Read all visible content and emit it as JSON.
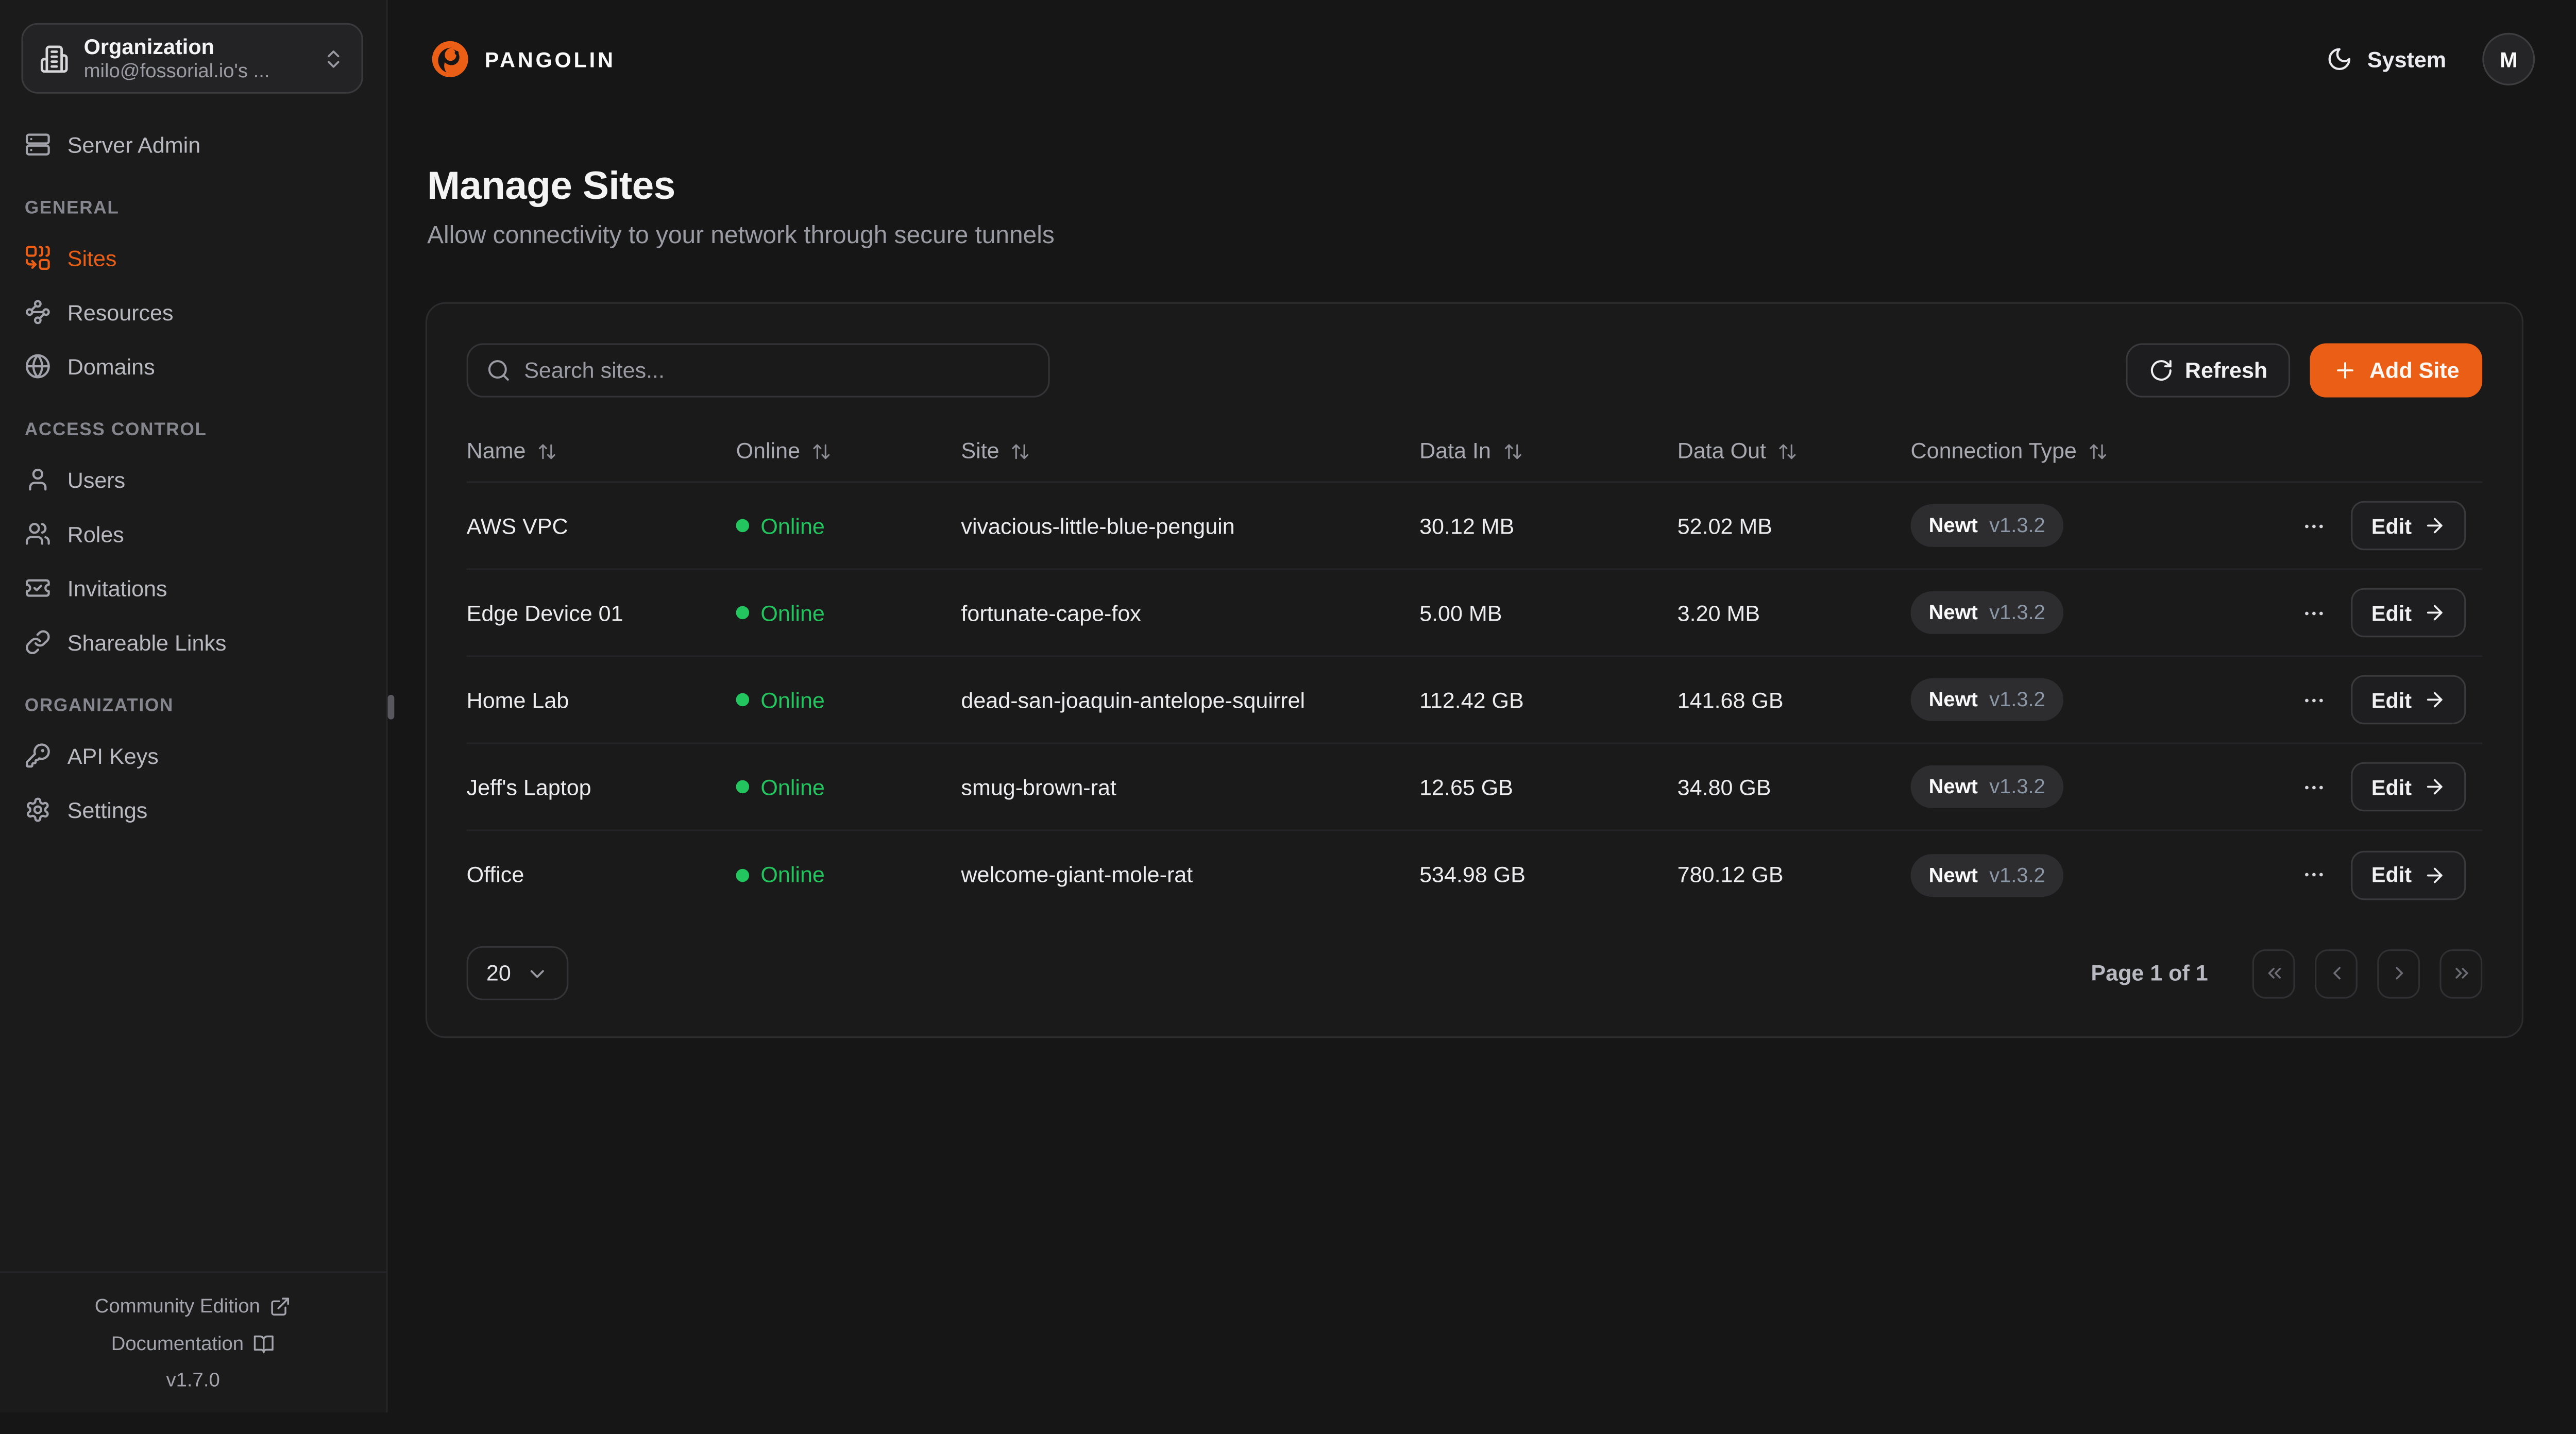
{
  "colors": {
    "accent": "#eb5e15",
    "online": "#22c55e"
  },
  "sidebar": {
    "org": {
      "label": "Organization",
      "value": "milo@fossorial.io's ...",
      "icon": "building-icon"
    },
    "server_admin": {
      "label": "Server Admin",
      "icon": "server-icon"
    },
    "sections": [
      {
        "label": "GENERAL",
        "items": [
          {
            "label": "Sites",
            "icon": "sites-icon",
            "active": true
          },
          {
            "label": "Resources",
            "icon": "resources-icon",
            "active": false
          },
          {
            "label": "Domains",
            "icon": "globe-icon",
            "active": false
          }
        ]
      },
      {
        "label": "ACCESS CONTROL",
        "items": [
          {
            "label": "Users",
            "icon": "user-icon",
            "active": false
          },
          {
            "label": "Roles",
            "icon": "users-icon",
            "active": false
          },
          {
            "label": "Invitations",
            "icon": "ticket-check-icon",
            "active": false
          },
          {
            "label": "Shareable Links",
            "icon": "link-icon",
            "active": false
          }
        ]
      },
      {
        "label": "ORGANIZATION",
        "items": [
          {
            "label": "API Keys",
            "icon": "key-icon",
            "active": false
          },
          {
            "label": "Settings",
            "icon": "gear-icon",
            "active": false
          }
        ]
      }
    ],
    "footer": {
      "community_label": "Community Edition",
      "documentation_label": "Documentation",
      "version": "v1.7.0"
    }
  },
  "header": {
    "brand": "PANGOLIN",
    "theme_label": "System",
    "avatar_initial": "M"
  },
  "page": {
    "title": "Manage Sites",
    "subtitle": "Allow connectivity to your network through secure tunnels"
  },
  "toolbar": {
    "search_placeholder": "Search sites...",
    "refresh_label": "Refresh",
    "add_site_label": "Add Site"
  },
  "table": {
    "columns": [
      "Name",
      "Online",
      "Site",
      "Data In",
      "Data Out",
      "Connection Type"
    ],
    "edit_label": "Edit",
    "rows": [
      {
        "name": "AWS VPC",
        "status": "Online",
        "site": "vivacious-little-blue-penguin",
        "data_in": "30.12 MB",
        "data_out": "52.02 MB",
        "connection": {
          "type": "Newt",
          "version": "v1.3.2"
        }
      },
      {
        "name": "Edge Device 01",
        "status": "Online",
        "site": "fortunate-cape-fox",
        "data_in": "5.00 MB",
        "data_out": "3.20 MB",
        "connection": {
          "type": "Newt",
          "version": "v1.3.2"
        }
      },
      {
        "name": "Home Lab",
        "status": "Online",
        "site": "dead-san-joaquin-antelope-squirrel",
        "data_in": "112.42 GB",
        "data_out": "141.68 GB",
        "connection": {
          "type": "Newt",
          "version": "v1.3.2"
        }
      },
      {
        "name": "Jeff's Laptop",
        "status": "Online",
        "site": "smug-brown-rat",
        "data_in": "12.65 GB",
        "data_out": "34.80 GB",
        "connection": {
          "type": "Newt",
          "version": "v1.3.2"
        }
      },
      {
        "name": "Office",
        "status": "Online",
        "site": "welcome-giant-mole-rat",
        "data_in": "534.98 GB",
        "data_out": "780.12 GB",
        "connection": {
          "type": "Newt",
          "version": "v1.3.2"
        }
      }
    ]
  },
  "pagination": {
    "page_size": "20",
    "status": "Page 1 of 1"
  }
}
